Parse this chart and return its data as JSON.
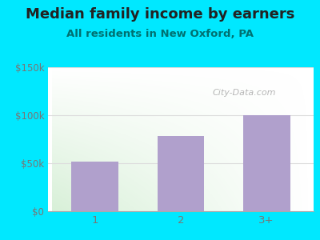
{
  "title": "Median family income by earners",
  "subtitle": "All residents in New Oxford, PA",
  "categories": [
    "1",
    "2",
    "3+"
  ],
  "values": [
    52000,
    78000,
    100000
  ],
  "bar_color": "#b0a0cc",
  "outer_bg": "#00e8ff",
  "title_color": "#222222",
  "subtitle_color": "#007070",
  "tick_color": "#777777",
  "ytick_labels": [
    "$0",
    "$50k",
    "$100k",
    "$150k"
  ],
  "ytick_values": [
    0,
    50000,
    100000,
    150000
  ],
  "ylim": [
    0,
    150000
  ],
  "watermark": "City-Data.com",
  "title_fontsize": 13,
  "subtitle_fontsize": 9.5,
  "grid_color": "#dddddd"
}
